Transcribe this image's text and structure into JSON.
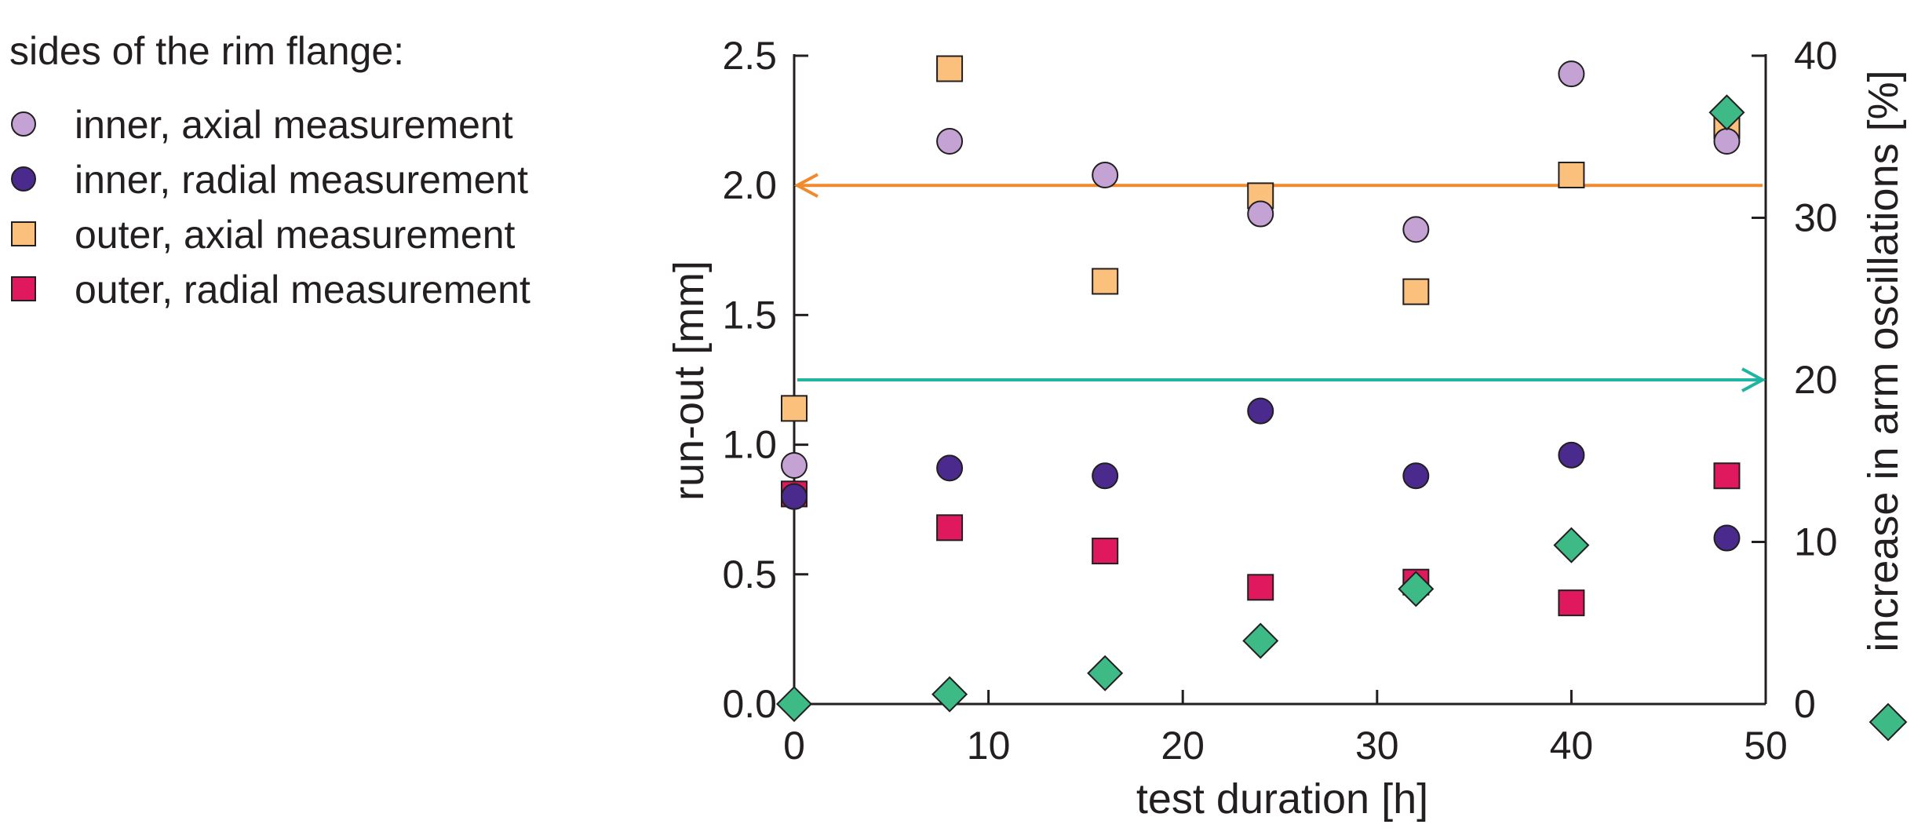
{
  "chart_data": {
    "type": "scatter",
    "title": "",
    "legend_title": "sides of the rim flange:",
    "legend_position": "top-left",
    "xlabel": "test duration [h]",
    "ylabel": "run-out [mm]",
    "y2label": "increase in arm oscillations [%]",
    "xlim": [
      0,
      50
    ],
    "ylim": [
      0,
      2.5
    ],
    "y2lim": [
      0,
      40
    ],
    "xticks": [
      "0",
      "10",
      "20",
      "30",
      "40",
      "50"
    ],
    "yticks": [
      "0.0",
      "0.5",
      "1.0",
      "1.5",
      "2.0",
      "2.5"
    ],
    "y2ticks": [
      "0",
      "10",
      "20",
      "30",
      "40"
    ],
    "grid": false,
    "series": [
      {
        "name": "inner, axial measurement",
        "axis": "left",
        "marker": "circle",
        "color": "#c4a2d3",
        "x": [
          0,
          8,
          16,
          24,
          32,
          40,
          48
        ],
        "y": [
          0.92,
          2.17,
          2.04,
          1.89,
          1.83,
          2.43,
          2.17
        ]
      },
      {
        "name": "inner, radial measurement",
        "axis": "left",
        "marker": "circle",
        "color": "#4a2a8c",
        "x": [
          0,
          8,
          16,
          24,
          32,
          40,
          48
        ],
        "y": [
          0.8,
          0.91,
          0.88,
          1.13,
          0.88,
          0.96,
          0.64
        ]
      },
      {
        "name": "outer, axial measurement",
        "axis": "left",
        "marker": "square",
        "color": "#fcc07d",
        "x": [
          0,
          8,
          16,
          24,
          32,
          40,
          48
        ],
        "y": [
          1.14,
          2.45,
          1.63,
          1.96,
          1.59,
          2.04,
          2.23
        ]
      },
      {
        "name": "outer, radial measurement",
        "axis": "left",
        "marker": "square",
        "color": "#e0195e",
        "x": [
          0,
          8,
          16,
          24,
          32,
          40,
          48
        ],
        "y": [
          0.81,
          0.68,
          0.59,
          0.45,
          0.47,
          0.39,
          0.88
        ]
      },
      {
        "name": "increase in arm oscillations",
        "axis": "right",
        "marker": "diamond",
        "color": "#3dba86",
        "x": [
          0,
          8,
          16,
          24,
          32,
          40,
          48
        ],
        "y": [
          0,
          0.6,
          1.9,
          3.9,
          7.1,
          9.8,
          36.5
        ]
      }
    ],
    "arrows": [
      {
        "name": "axis-pointer-left",
        "points_to": "left",
        "axis": "left",
        "value": 2.0,
        "color": "#f08a2e"
      },
      {
        "name": "axis-pointer-right",
        "points_to": "right",
        "axis": "left",
        "value": 1.25,
        "color": "#1fb5a0"
      }
    ]
  }
}
